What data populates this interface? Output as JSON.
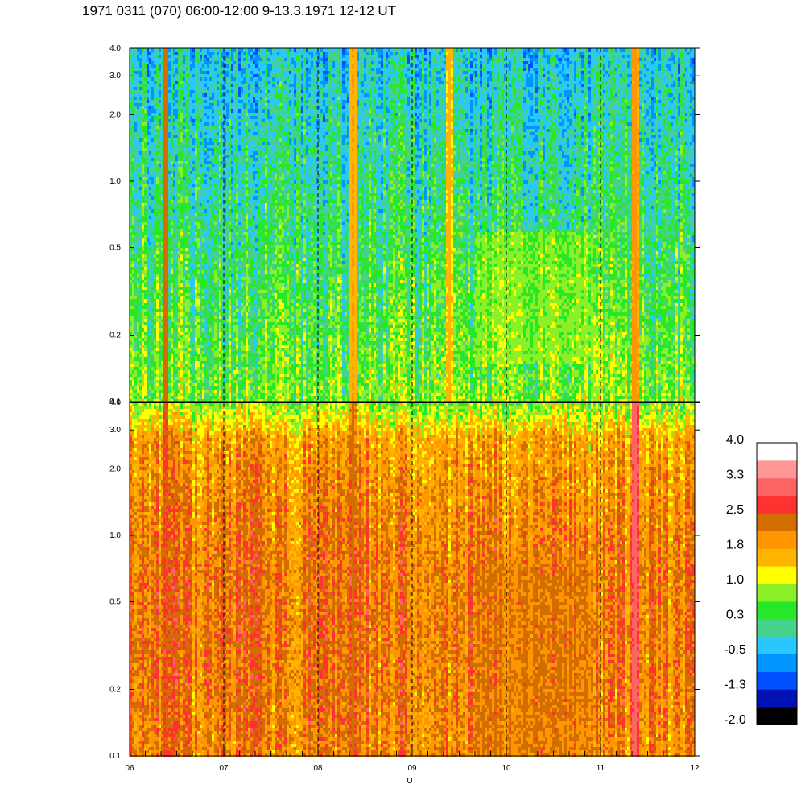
{
  "chart_data": {
    "type": "heatmap",
    "title": "1971 0311 (070) 06:00-12:00 9-13.3.1971  12-12 UT",
    "xlabel": "UT",
    "x_ticks": [
      "06",
      "07",
      "08",
      "09",
      "10",
      "11",
      "12"
    ],
    "x_range": [
      6,
      12
    ],
    "y_scale": "log",
    "y_range": [
      0.1,
      4.0
    ],
    "y_ticks": [
      {
        "label": "0.1",
        "value": 0.1
      },
      {
        "label": "0.2",
        "value": 0.2
      },
      {
        "label": "0.5",
        "value": 0.5
      },
      {
        "label": "1.0",
        "value": 1.0
      },
      {
        "label": "2.0",
        "value": 2.0
      },
      {
        "label": "3.0",
        "value": 3.0
      },
      {
        "label": "4.0",
        "value": 4.0
      }
    ],
    "dashed_hour_lines": [
      7,
      8,
      9,
      10,
      11
    ],
    "panels": [
      {
        "name": "upper",
        "base_value": 0.2,
        "events": [
          {
            "x": 6.37,
            "value": 2.4
          },
          {
            "x": 8.36,
            "value": 1.8
          },
          {
            "x": 9.38,
            "value": 1.6
          },
          {
            "x": 11.35,
            "value": 2.0
          }
        ],
        "regions": [
          {
            "x_start": 9.65,
            "x_end": 10.9,
            "y_start": 0.15,
            "y_end": 0.6,
            "value": 1.0
          }
        ]
      },
      {
        "name": "lower",
        "base_value": 1.6,
        "events": [
          {
            "x": 6.37,
            "value": 2.6
          },
          {
            "x": 8.36,
            "value": 2.3
          },
          {
            "x": 11.35,
            "value": 3.1
          }
        ],
        "regions": [
          {
            "x_start": 9.65,
            "x_end": 10.9,
            "y_start": 0.1,
            "y_end": 0.8,
            "value": 2.2
          }
        ]
      }
    ],
    "colorbar": {
      "colors": [
        "#000000",
        "#0012b4",
        "#0050ff",
        "#0096ff",
        "#28c8ff",
        "#46d28c",
        "#28e628",
        "#8cf028",
        "#ffff00",
        "#ffb400",
        "#ff9600",
        "#d26e00",
        "#ff3232",
        "#ff6464",
        "#ff9696",
        "#ffffff"
      ],
      "labels": [
        "4.0",
        "3.3",
        "2.5",
        "1.8",
        "1.0",
        "0.3",
        "-0.5",
        "-1.3",
        "-2.0"
      ],
      "range": [
        -2.0,
        4.0
      ]
    }
  }
}
